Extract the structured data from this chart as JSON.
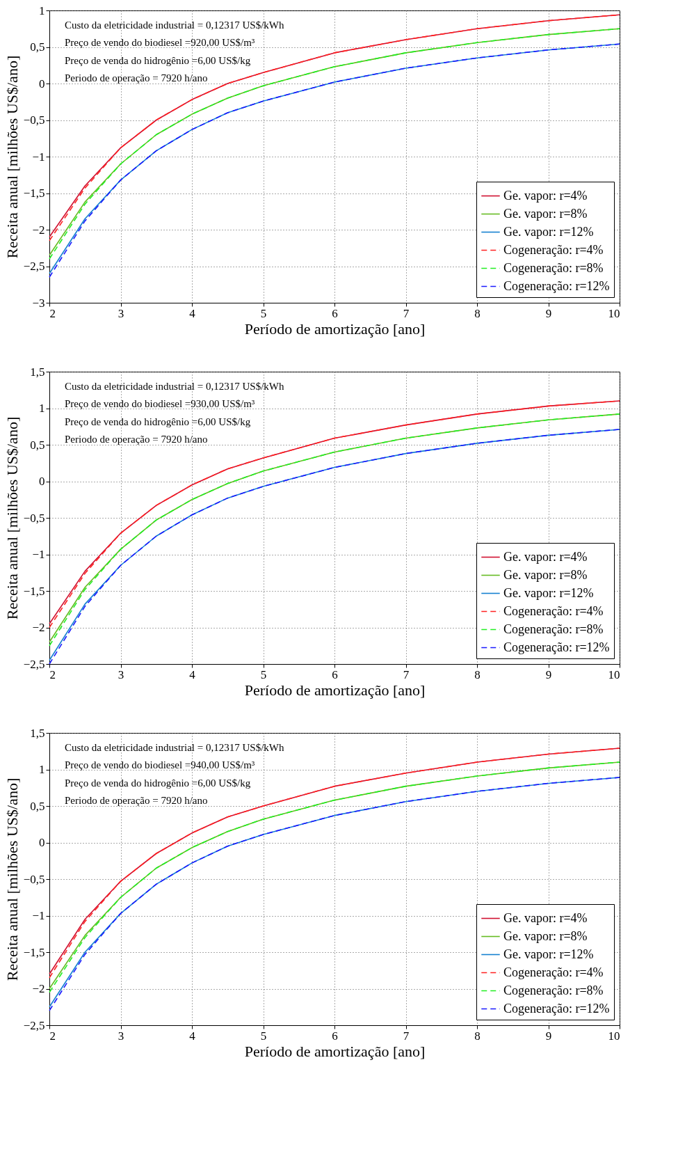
{
  "chart_data": [
    {
      "type": "line",
      "xlabel": "Período de amortização [ano]",
      "ylabel": "Receita anual [milhões US$/ano]",
      "grid": true,
      "legend": "bottom right",
      "x": [
        2,
        2.5,
        3,
        3.5,
        4,
        4.5,
        5,
        6,
        7,
        8,
        9,
        10
      ],
      "xlim": [
        2,
        10
      ],
      "xticks": [
        2,
        3,
        4,
        5,
        6,
        7,
        8,
        9,
        10
      ],
      "ylim": [
        -3,
        1
      ],
      "yticks": [
        {
          "value": -3,
          "label": "−3"
        },
        {
          "value": -2.5,
          "label": "−2,5"
        },
        {
          "value": -2,
          "label": "−2"
        },
        {
          "value": -1.5,
          "label": "−1,5"
        },
        {
          "value": -1,
          "label": "−1"
        },
        {
          "value": -0.5,
          "label": "−0,5"
        },
        {
          "value": 0,
          "label": "0"
        },
        {
          "value": 0.5,
          "label": "0,5"
        },
        {
          "value": 1,
          "label": "1"
        }
      ],
      "annotations": [
        "Custo da eletricidade industrial = 0,12317 US$/kWh",
        "Preço de vendo do biodiesel =920,00 US$/m³",
        "Preço de venda do hidrogênio =6,00 US$/kg",
        "Periodo de operação = 7920 h/ano"
      ],
      "series": [
        {
          "name": "Ge. vapor: r=4%",
          "color": "#d01030",
          "line_style": "solid",
          "values": [
            -2.1,
            -1.4,
            -0.88,
            -0.5,
            -0.22,
            0,
            0.15,
            0.42,
            0.6,
            0.75,
            0.86,
            0.94
          ]
        },
        {
          "name": "Ge. vapor: r=8%",
          "color": "#66bb22",
          "line_style": "solid",
          "values": [
            -2.35,
            -1.62,
            -1.1,
            -0.7,
            -0.42,
            -0.2,
            -0.03,
            0.23,
            0.42,
            0.56,
            0.67,
            0.75
          ]
        },
        {
          "name": "Ge. vapor: r=12%",
          "color": "#1580d0",
          "line_style": "solid",
          "values": [
            -2.6,
            -1.85,
            -1.32,
            -0.92,
            -0.63,
            -0.4,
            -0.24,
            0.02,
            0.21,
            0.35,
            0.46,
            0.54
          ]
        },
        {
          "name": "Cogeneração: r=4%",
          "color": "#ff2020",
          "line_style": "dashed",
          "values": [
            -2.15,
            -1.43,
            -0.88,
            -0.5,
            -0.22,
            0,
            0.15,
            0.42,
            0.6,
            0.75,
            0.86,
            0.94
          ]
        },
        {
          "name": "Cogeneração: r=8%",
          "color": "#22ee22",
          "line_style": "dashed",
          "values": [
            -2.4,
            -1.65,
            -1.1,
            -0.7,
            -0.42,
            -0.2,
            -0.03,
            0.23,
            0.42,
            0.56,
            0.67,
            0.75
          ]
        },
        {
          "name": "Cogeneração: r=12%",
          "color": "#1a1aff",
          "line_style": "dashed",
          "values": [
            -2.65,
            -1.88,
            -1.32,
            -0.92,
            -0.63,
            -0.4,
            -0.24,
            0.02,
            0.21,
            0.35,
            0.46,
            0.54
          ]
        }
      ]
    },
    {
      "type": "line",
      "xlabel": "Período de amortização [ano]",
      "ylabel": "Receita anual [milhões US$/ano]",
      "grid": true,
      "legend": "bottom right",
      "x": [
        2,
        2.5,
        3,
        3.5,
        4,
        4.5,
        5,
        6,
        7,
        8,
        9,
        10
      ],
      "xlim": [
        2,
        10
      ],
      "xticks": [
        2,
        3,
        4,
        5,
        6,
        7,
        8,
        9,
        10
      ],
      "ylim": [
        -2.5,
        1.5
      ],
      "yticks": [
        {
          "value": -2.5,
          "label": "−2,5"
        },
        {
          "value": -2,
          "label": "−2"
        },
        {
          "value": -1.5,
          "label": "−1,5"
        },
        {
          "value": -1,
          "label": "−1"
        },
        {
          "value": -0.5,
          "label": "−0,5"
        },
        {
          "value": 0,
          "label": "0"
        },
        {
          "value": 0.5,
          "label": "0,5"
        },
        {
          "value": 1,
          "label": "1"
        },
        {
          "value": 1.5,
          "label": "1,5"
        }
      ],
      "annotations": [
        "Custo da eletricidade industrial = 0,12317 US$/kWh",
        "Preço de vendo do biodiesel =930,00 US$/m³",
        "Preço de venda do hidrogênio =6,00 US$/kg",
        "Periodo de operação = 7920 h/ano"
      ],
      "series": [
        {
          "name": "Ge. vapor: r=4%",
          "color": "#d01030",
          "line_style": "solid",
          "values": [
            -1.95,
            -1.23,
            -0.71,
            -0.33,
            -0.05,
            0.17,
            0.32,
            0.59,
            0.77,
            0.92,
            1.03,
            1.1
          ]
        },
        {
          "name": "Ge. vapor: r=8%",
          "color": "#66bb22",
          "line_style": "solid",
          "values": [
            -2.2,
            -1.45,
            -0.93,
            -0.53,
            -0.25,
            -0.03,
            0.14,
            0.4,
            0.59,
            0.73,
            0.84,
            0.92
          ]
        },
        {
          "name": "Ge. vapor: r=12%",
          "color": "#1580d0",
          "line_style": "solid",
          "values": [
            -2.45,
            -1.68,
            -1.15,
            -0.75,
            -0.46,
            -0.23,
            -0.07,
            0.19,
            0.38,
            0.52,
            0.63,
            0.71
          ]
        },
        {
          "name": "Cogeneração: r=4%",
          "color": "#ff2020",
          "line_style": "dashed",
          "values": [
            -2.0,
            -1.26,
            -0.71,
            -0.33,
            -0.05,
            0.17,
            0.32,
            0.59,
            0.77,
            0.92,
            1.03,
            1.1
          ]
        },
        {
          "name": "Cogeneração: r=8%",
          "color": "#22ee22",
          "line_style": "dashed",
          "values": [
            -2.25,
            -1.48,
            -0.93,
            -0.53,
            -0.25,
            -0.03,
            0.14,
            0.4,
            0.59,
            0.73,
            0.84,
            0.92
          ]
        },
        {
          "name": "Cogeneração: r=12%",
          "color": "#1a1aff",
          "line_style": "dashed",
          "values": [
            -2.5,
            -1.71,
            -1.15,
            -0.75,
            -0.46,
            -0.23,
            -0.07,
            0.19,
            0.38,
            0.52,
            0.63,
            0.71
          ]
        }
      ]
    },
    {
      "type": "line",
      "xlabel": "Período de amortização [ano]",
      "ylabel": "Receita anual [milhões US$/ano]",
      "grid": true,
      "legend": "bottom right",
      "x": [
        2,
        2.5,
        3,
        3.5,
        4,
        4.5,
        5,
        6,
        7,
        8,
        9,
        10
      ],
      "xlim": [
        2,
        10
      ],
      "xticks": [
        2,
        3,
        4,
        5,
        6,
        7,
        8,
        9,
        10
      ],
      "ylim": [
        -2.5,
        1.5
      ],
      "yticks": [
        {
          "value": -2.5,
          "label": "−2,5"
        },
        {
          "value": -2,
          "label": "−2"
        },
        {
          "value": -1.5,
          "label": "−1,5"
        },
        {
          "value": -1,
          "label": "−1"
        },
        {
          "value": -0.5,
          "label": "−0,5"
        },
        {
          "value": 0,
          "label": "0"
        },
        {
          "value": 0.5,
          "label": "0,5"
        },
        {
          "value": 1,
          "label": "1"
        },
        {
          "value": 1.5,
          "label": "1,5"
        }
      ],
      "annotations": [
        "Custo da eletricidade industrial = 0,12317 US$/kWh",
        "Preço de vendo do biodiesel =940,00 US$/m³",
        "Preço de venda do hidrogênio =6,00 US$/kg",
        "Periodo de operação = 7920 h/ano"
      ],
      "series": [
        {
          "name": "Ge. vapor: r=4%",
          "color": "#d01030",
          "line_style": "solid",
          "values": [
            -1.8,
            -1.05,
            -0.53,
            -0.15,
            0.13,
            0.35,
            0.5,
            0.77,
            0.95,
            1.1,
            1.21,
            1.29
          ]
        },
        {
          "name": "Ge. vapor: r=8%",
          "color": "#66bb22",
          "line_style": "solid",
          "values": [
            -2.0,
            -1.27,
            -0.75,
            -0.35,
            -0.07,
            0.15,
            0.32,
            0.58,
            0.77,
            0.91,
            1.02,
            1.1
          ]
        },
        {
          "name": "Ge. vapor: r=12%",
          "color": "#1580d0",
          "line_style": "solid",
          "values": [
            -2.25,
            -1.5,
            -0.97,
            -0.57,
            -0.28,
            -0.05,
            0.11,
            0.37,
            0.56,
            0.7,
            0.81,
            0.89
          ]
        },
        {
          "name": "Cogeneração: r=4%",
          "color": "#ff2020",
          "line_style": "dashed",
          "values": [
            -1.85,
            -1.08,
            -0.53,
            -0.15,
            0.13,
            0.35,
            0.5,
            0.77,
            0.95,
            1.1,
            1.21,
            1.29
          ]
        },
        {
          "name": "Cogeneração: r=8%",
          "color": "#22ee22",
          "line_style": "dashed",
          "values": [
            -2.05,
            -1.3,
            -0.75,
            -0.35,
            -0.07,
            0.15,
            0.32,
            0.58,
            0.77,
            0.91,
            1.02,
            1.1
          ]
        },
        {
          "name": "Cogeneração: r=12%",
          "color": "#1a1aff",
          "line_style": "dashed",
          "values": [
            -2.3,
            -1.53,
            -0.97,
            -0.57,
            -0.28,
            -0.05,
            0.11,
            0.37,
            0.56,
            0.7,
            0.81,
            0.89
          ]
        }
      ]
    }
  ]
}
